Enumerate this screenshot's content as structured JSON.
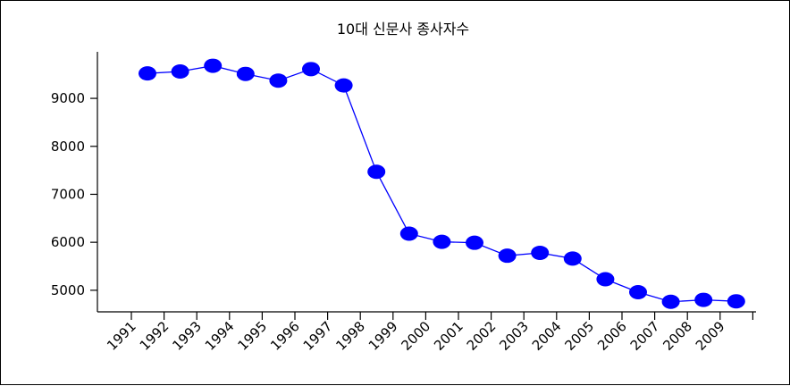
{
  "chart_data": {
    "type": "line",
    "title": "10대 신문사 종사자수",
    "xlabel": "",
    "ylabel": "",
    "categories": [
      "1991",
      "1992",
      "1993",
      "1994",
      "1995",
      "1996",
      "1997",
      "1998",
      "1999",
      "2000",
      "2001",
      "2002",
      "2003",
      "2004",
      "2005",
      "2006",
      "2007",
      "2008",
      "2009"
    ],
    "series": [
      {
        "values": [
          9520,
          9560,
          9680,
          9510,
          9370,
          9610,
          9270,
          7470,
          6180,
          6010,
          5990,
          5720,
          5780,
          5660,
          5230,
          4960,
          4760,
          4800,
          4770
        ]
      }
    ],
    "yticks": [
      5000,
      6000,
      7000,
      8000,
      9000
    ],
    "ylim": [
      4550,
      9970
    ],
    "grid": false,
    "legend": "none",
    "colors": {
      "series": "#0000ff",
      "axis": "#000000"
    }
  }
}
